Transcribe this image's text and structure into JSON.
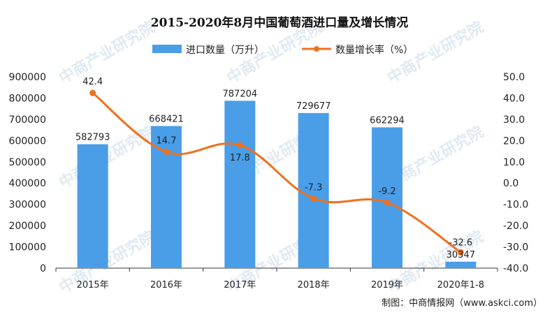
{
  "chart_data": {
    "type": "bar",
    "title": "2015-2020年8月中国葡萄酒进口量及增长情况",
    "categories": [
      "2015年",
      "2016年",
      "2017年",
      "2018年",
      "2019年",
      "2020年1-8"
    ],
    "series": [
      {
        "name": "进口数量（万升）",
        "type": "bar",
        "axis": "left",
        "values": [
          582793,
          668421,
          787204,
          729677,
          662294,
          30347
        ],
        "labels": [
          "582793",
          "668421",
          "787204",
          "729677",
          "662294",
          "30347"
        ],
        "color": "#4a9ee8"
      },
      {
        "name": "数量增长率（%）",
        "type": "line",
        "axis": "right",
        "values": [
          42.4,
          14.7,
          17.8,
          -7.3,
          -9.2,
          -32.6
        ],
        "labels": [
          "42.4",
          "14.7",
          "17.8",
          "-7.3",
          "-9.2",
          "-32.6"
        ],
        "color": "#f0701f"
      }
    ],
    "y_left": {
      "lim": [
        0,
        900000
      ],
      "ticks": [
        "0",
        "100000",
        "200000",
        "300000",
        "400000",
        "500000",
        "600000",
        "700000",
        "800000",
        "900000"
      ]
    },
    "y_right": {
      "lim": [
        -40,
        50
      ],
      "ticks": [
        "-40.0",
        "-30.0",
        "-20.0",
        "-10.0",
        "0.0",
        "10.0",
        "20.0",
        "30.0",
        "40.0",
        "50.0"
      ]
    },
    "grid": false,
    "legend_position": "top"
  },
  "source": "制图：中商情报网（www.askci.com）",
  "watermark": "中商产业研究院"
}
